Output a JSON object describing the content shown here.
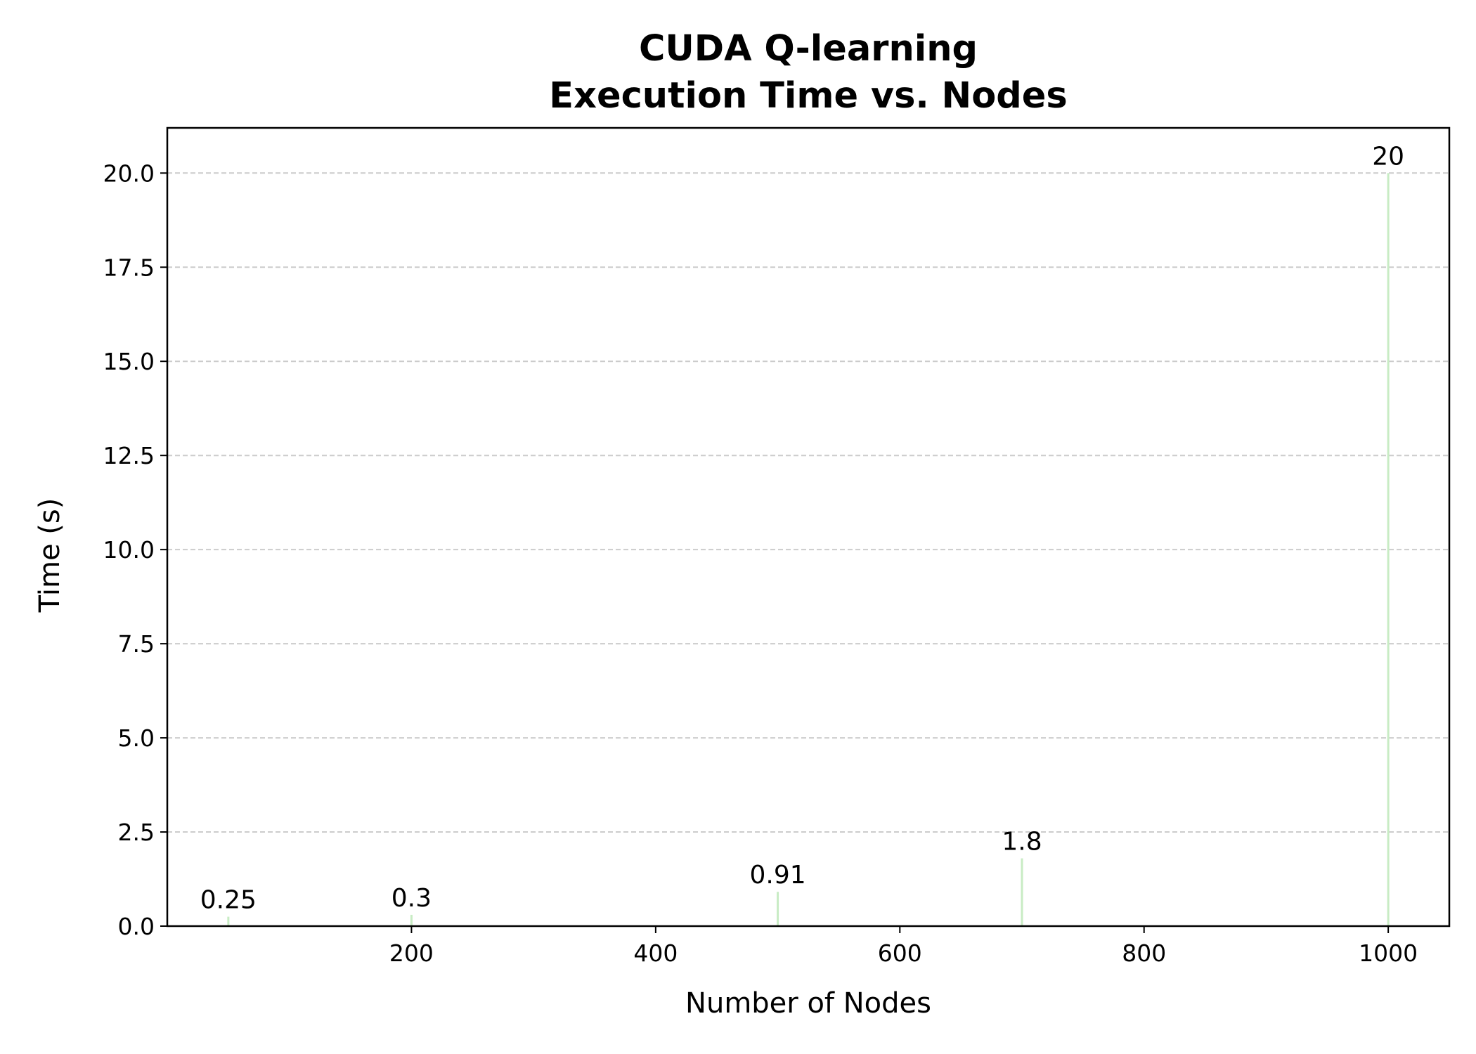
{
  "chart_data": {
    "type": "bar",
    "title_lines": [
      "CUDA Q-learning",
      "Execution Time vs. Nodes"
    ],
    "xlabel": "Number of Nodes",
    "ylabel": "Time (s)",
    "x": [
      50,
      200,
      500,
      700,
      1000
    ],
    "values": [
      0.25,
      0.3,
      0.91,
      1.8,
      20
    ],
    "data_labels": [
      "0.25",
      "0.3",
      "0.91",
      "1.8",
      "20"
    ],
    "xlim": [
      0,
      1050
    ],
    "ylim": [
      0,
      21.2
    ],
    "xticks": [
      200,
      400,
      600,
      800,
      1000
    ],
    "xtick_labels": [
      "200",
      "400",
      "600",
      "800",
      "1000"
    ],
    "yticks": [
      0,
      2.5,
      5,
      7.5,
      10,
      12.5,
      15,
      17.5,
      20
    ],
    "ytick_labels": [
      "0.0",
      "2.5",
      "5.0",
      "7.5",
      "10.0",
      "12.5",
      "15.0",
      "17.5",
      "20.0"
    ],
    "grid": "y-dashed",
    "bar_color": "#c8ecc4",
    "grid_color": "#cccccc"
  }
}
